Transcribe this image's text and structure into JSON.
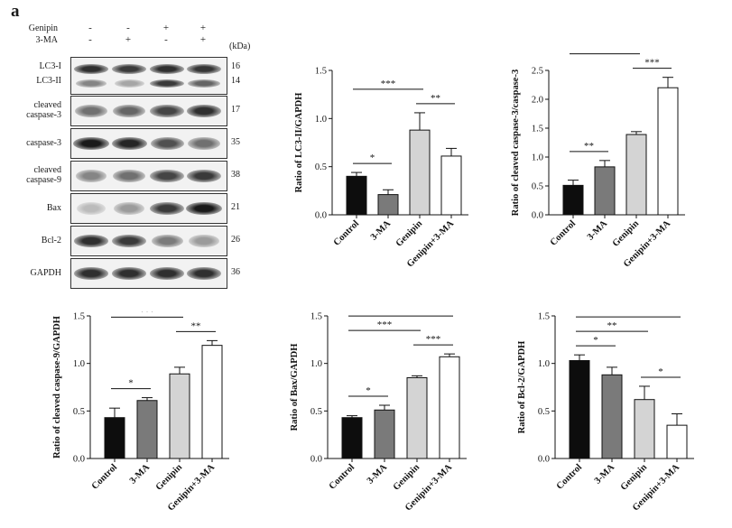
{
  "panel_label": "a",
  "blot": {
    "treatments": [
      {
        "name": "Genipin",
        "marks": [
          "-",
          "-",
          "+",
          "+"
        ]
      },
      {
        "name": "3-MA",
        "marks": [
          "-",
          "+",
          "-",
          "+"
        ]
      }
    ],
    "kda_header": "(kDa)",
    "rows": [
      {
        "labels": [
          "LC3-I",
          "LC3-II"
        ],
        "kda": [
          "16",
          "14"
        ],
        "intensity": [
          0.85,
          0.8,
          0.85,
          0.82
        ],
        "intensity2": [
          0.45,
          0.3,
          0.8,
          0.6
        ]
      },
      {
        "labels": [
          "cleaved",
          "caspase-3"
        ],
        "kda": [
          "17"
        ],
        "intensity": [
          0.55,
          0.6,
          0.75,
          0.85
        ]
      },
      {
        "labels": [
          "caspase-3"
        ],
        "kda": [
          "35"
        ],
        "intensity": [
          0.95,
          0.9,
          0.7,
          0.55
        ]
      },
      {
        "labels": [
          "cleaved",
          "caspase-9"
        ],
        "kda": [
          "38"
        ],
        "intensity": [
          0.45,
          0.55,
          0.75,
          0.8
        ]
      },
      {
        "labels": [
          "Bax"
        ],
        "kda": [
          "21"
        ],
        "intensity": [
          0.2,
          0.35,
          0.8,
          0.95
        ]
      },
      {
        "labels": [
          "Bcl-2"
        ],
        "kda": [
          "26"
        ],
        "intensity": [
          0.85,
          0.8,
          0.5,
          0.35
        ]
      },
      {
        "labels": [
          "GAPDH"
        ],
        "kda": [
          "36"
        ],
        "intensity": [
          0.85,
          0.85,
          0.85,
          0.85
        ]
      }
    ]
  },
  "chart_data": [
    {
      "type": "bar",
      "categories": [
        "Control",
        "3-MA",
        "Genipin",
        "Genipin+3-MA"
      ],
      "values": [
        0.4,
        0.21,
        0.88,
        0.61
      ],
      "errors": [
        0.04,
        0.05,
        0.18,
        0.08
      ],
      "ylabel": "Ratio of LC3-II/GAPDH",
      "ylim": [
        0,
        1.5
      ],
      "yticks": [
        "0.0",
        "0.5",
        "1.0",
        "1.5"
      ],
      "colors": [
        "#0d0d0d",
        "#7a7a7a",
        "#d4d4d4",
        "#ffffff"
      ],
      "significance": [
        {
          "from": 0,
          "to": 1,
          "label": "*"
        },
        {
          "from": 0,
          "to": 2,
          "label": "***"
        },
        {
          "from": 2,
          "to": 3,
          "label": "**"
        }
      ]
    },
    {
      "type": "bar",
      "categories": [
        "Control",
        "3-MA",
        "Genipin",
        "Genipin+3-MA"
      ],
      "values": [
        0.51,
        0.83,
        1.39,
        2.2
      ],
      "errors": [
        0.09,
        0.11,
        0.05,
        0.18
      ],
      "ylabel": "Ratio of cleaved caspase-3/caspase-3",
      "ylim": [
        0,
        2.5
      ],
      "yticks": [
        "0.0",
        "0.5",
        "1.0",
        "1.5",
        "2.0",
        "2.5"
      ],
      "colors": [
        "#0d0d0d",
        "#7a7a7a",
        "#d4d4d4",
        "#ffffff"
      ],
      "significance": [
        {
          "from": 0,
          "to": 1,
          "label": "**"
        },
        {
          "from": 0,
          "to": 2,
          "label": "***"
        },
        {
          "from": 0,
          "to": 3,
          "label": "***"
        },
        {
          "from": 2,
          "to": 3,
          "label": "***"
        }
      ]
    },
    {
      "type": "bar",
      "categories": [
        "Control",
        "3-MA",
        "Genipin",
        "Genipin+3-MA"
      ],
      "values": [
        0.43,
        0.61,
        0.89,
        1.19
      ],
      "errors": [
        0.1,
        0.03,
        0.07,
        0.05
      ],
      "ylabel": "Ratio of cleaved caspase-9/GAPDH",
      "ylim": [
        0,
        1.5
      ],
      "yticks": [
        "0.0",
        "0.5",
        "1.0",
        "1.5"
      ],
      "colors": [
        "#0d0d0d",
        "#7a7a7a",
        "#d4d4d4",
        "#ffffff"
      ],
      "significance": [
        {
          "from": 0,
          "to": 1,
          "label": "*"
        },
        {
          "from": 0,
          "to": 2,
          "label": "***"
        },
        {
          "from": 0,
          "to": 3,
          "label": "***"
        },
        {
          "from": 2,
          "to": 3,
          "label": "**"
        }
      ]
    },
    {
      "type": "bar",
      "categories": [
        "Control",
        "3-MA",
        "Genipin",
        "Genipin+3-MA"
      ],
      "values": [
        0.43,
        0.51,
        0.85,
        1.07
      ],
      "errors": [
        0.02,
        0.05,
        0.02,
        0.03
      ],
      "ylabel": "Ratio of Bax/GAPDH",
      "ylim": [
        0,
        1.5
      ],
      "yticks": [
        "0.0",
        "0.5",
        "1.0",
        "1.5"
      ],
      "colors": [
        "#0d0d0d",
        "#7a7a7a",
        "#d4d4d4",
        "#ffffff"
      ],
      "significance": [
        {
          "from": 0,
          "to": 1,
          "label": "*"
        },
        {
          "from": 0,
          "to": 2,
          "label": "***"
        },
        {
          "from": 0,
          "to": 3,
          "label": "***"
        },
        {
          "from": 2,
          "to": 3,
          "label": "***"
        }
      ]
    },
    {
      "type": "bar",
      "categories": [
        "Control",
        "3-MA",
        "Genipin",
        "Genipin+3-MA"
      ],
      "values": [
        1.03,
        0.88,
        0.62,
        0.35
      ],
      "errors": [
        0.06,
        0.08,
        0.14,
        0.12
      ],
      "ylabel": "Ratio of Bcl-2/GAPDH",
      "ylim": [
        0,
        1.5
      ],
      "yticks": [
        "0.0",
        "0.5",
        "1.0",
        "1.5"
      ],
      "colors": [
        "#0d0d0d",
        "#7a7a7a",
        "#d4d4d4",
        "#ffffff"
      ],
      "significance": [
        {
          "from": 0,
          "to": 1,
          "label": "*"
        },
        {
          "from": 0,
          "to": 2,
          "label": "**"
        },
        {
          "from": 0,
          "to": 3,
          "label": "***"
        },
        {
          "from": 2,
          "to": 3,
          "label": "*"
        }
      ]
    }
  ]
}
